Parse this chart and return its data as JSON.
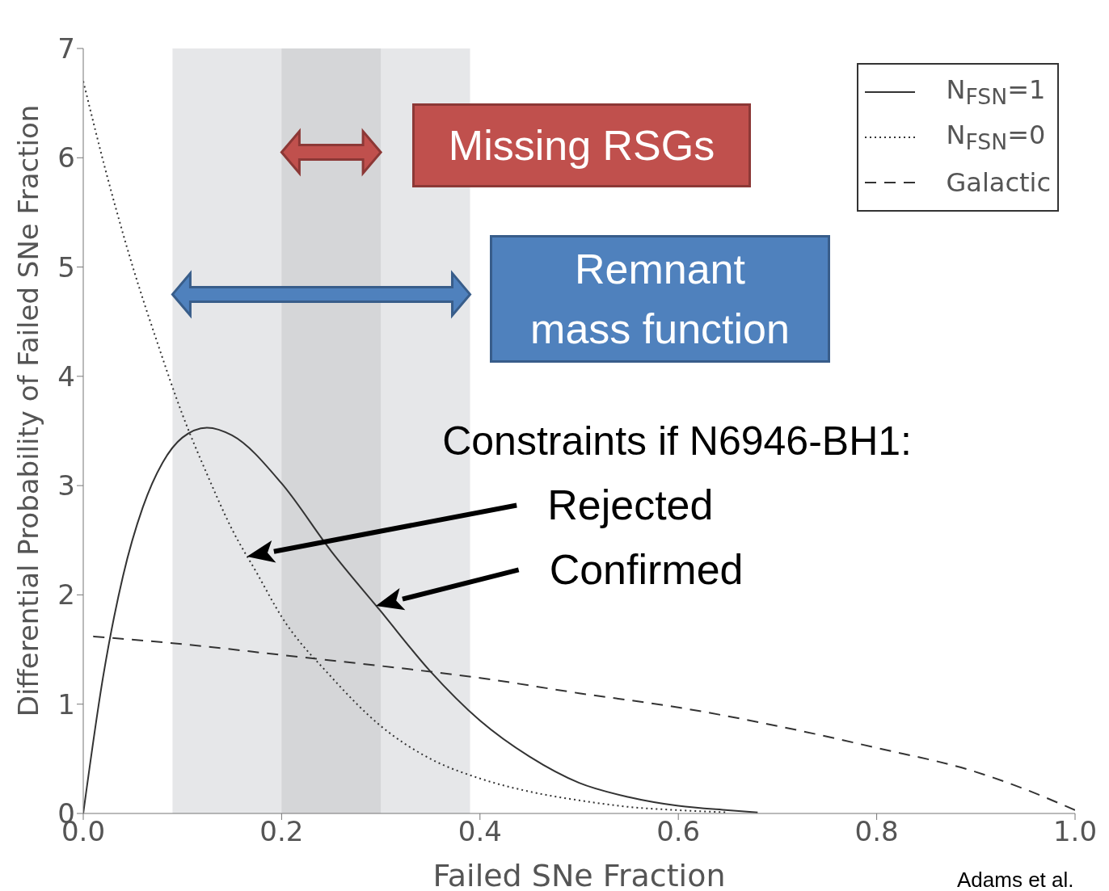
{
  "chart_data": {
    "type": "line",
    "xlabel": "Failed SNe Fraction",
    "ylabel": "Differential Probability of Failed SNe Fraction",
    "xlim": [
      0,
      1
    ],
    "ylim": [
      0,
      7
    ],
    "xticks": [
      {
        "value": 0,
        "label": "0.0"
      },
      0.2,
      0.4,
      0.6,
      0.8,
      {
        "value": 1,
        "label": "1.0"
      }
    ],
    "yticks": [
      0,
      1,
      2,
      3,
      4,
      5,
      6,
      7
    ],
    "grid": false,
    "legend": "top right",
    "series": [
      {
        "name": "N$_{FSN}$=1",
        "color": "#333333",
        "line_style": "solid",
        "x": [
          0,
          0.02,
          0.04,
          0.06,
          0.08,
          0.1,
          0.125,
          0.15,
          0.2,
          0.25,
          0.3,
          0.35,
          0.4,
          0.45,
          0.5,
          0.55,
          0.6,
          0.65,
          0.68
        ],
        "values": [
          0,
          1.25,
          2.17,
          2.8,
          3.21,
          3.44,
          3.53,
          3.46,
          3.02,
          2.4,
          1.85,
          1.3,
          0.85,
          0.52,
          0.28,
          0.15,
          0.07,
          0.03,
          0.01
        ]
      },
      {
        "name": "N$_{FSN}$=0",
        "color": "#333333",
        "line_style": "dotted",
        "x": [
          0,
          0.025,
          0.05,
          0.075,
          0.1,
          0.125,
          0.15,
          0.175,
          0.2,
          0.25,
          0.3,
          0.35,
          0.4,
          0.45,
          0.5,
          0.55,
          0.6,
          0.65
        ],
        "values": [
          6.7,
          5.8,
          5,
          4.3,
          3.65,
          3.1,
          2.6,
          2.2,
          1.8,
          1.25,
          0.8,
          0.5,
          0.32,
          0.2,
          0.12,
          0.06,
          0.03,
          0.01
        ]
      },
      {
        "name": "Galactic",
        "color": "#333333",
        "line_style": "dashed",
        "x": [
          0.01,
          0.1,
          0.2,
          0.3,
          0.4,
          0.5,
          0.6,
          0.7,
          0.8,
          0.9,
          0.95,
          1
        ],
        "values": [
          1.62,
          1.55,
          1.45,
          1.35,
          1.24,
          1.1,
          0.97,
          0.8,
          0.6,
          0.38,
          0.22,
          0.03
        ]
      }
    ],
    "bands": [
      {
        "axis": "x",
        "from": 0.09,
        "to": 0.39,
        "color": "#e6e7e9"
      },
      {
        "axis": "x",
        "from": 0.2,
        "to": 0.3,
        "color": "#d5d6d8"
      }
    ],
    "annotations": [
      "Missing RSGs",
      "Remnant mass function",
      "Constraints if N6946-BH1:",
      "Rejected",
      "Confirmed",
      "Adams et al."
    ]
  }
}
